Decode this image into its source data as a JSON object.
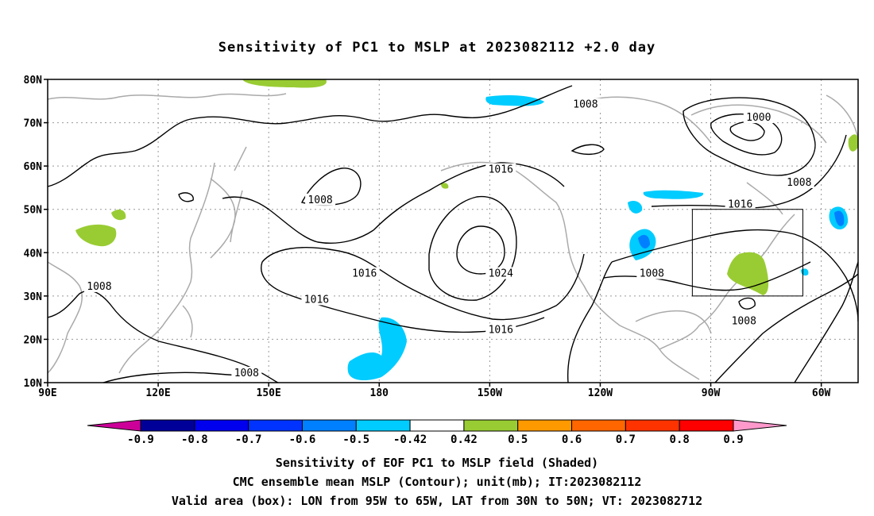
{
  "title": "Sensitivity of PC1 to MSLP at 2023082112 +2.0 day",
  "map": {
    "lat_labels": [
      "80N",
      "70N",
      "60N",
      "50N",
      "40N",
      "30N",
      "20N",
      "10N"
    ],
    "lon_labels": [
      "90E",
      "120E",
      "150E",
      "180",
      "150W",
      "120W",
      "90W",
      "60W"
    ],
    "lon_range": [
      90,
      310
    ],
    "lat_range": [
      10,
      80
    ],
    "contour_labels": [
      {
        "text": "1008",
        "lon": 236,
        "lat": 74
      },
      {
        "text": "1000",
        "lon": 283,
        "lat": 71
      },
      {
        "text": "1008",
        "lon": 294,
        "lat": 56
      },
      {
        "text": "1016",
        "lon": 213,
        "lat": 59
      },
      {
        "text": "1008",
        "lon": 164,
        "lat": 52
      },
      {
        "text": "1016",
        "lon": 278,
        "lat": 51
      },
      {
        "text": "1016",
        "lon": 176,
        "lat": 35
      },
      {
        "text": "1024",
        "lon": 213,
        "lat": 35
      },
      {
        "text": "1008",
        "lon": 254,
        "lat": 35
      },
      {
        "text": "1008",
        "lon": 104,
        "lat": 32
      },
      {
        "text": "1016",
        "lon": 163,
        "lat": 29
      },
      {
        "text": "1016",
        "lon": 213,
        "lat": 22
      },
      {
        "text": "1008",
        "lon": 279,
        "lat": 24
      },
      {
        "text": "1008",
        "lon": 144,
        "lat": 12
      }
    ],
    "valid_box": {
      "lon_min": 265,
      "lon_max": 295,
      "lat_min": 30,
      "lat_max": 50
    },
    "colors": {
      "land": "#aaaaaa",
      "contour": "#000000",
      "grid": "#999999",
      "pos_0_5": "#99cc33",
      "neg_0_5": "#00ccff",
      "neg_0_6": "#0080ff"
    }
  },
  "colorbar": {
    "labels": [
      "-0.9",
      "-0.8",
      "-0.7",
      "-0.6",
      "-0.5",
      "-0.42",
      "0.42",
      "0.5",
      "0.6",
      "0.7",
      "0.8",
      "0.9"
    ],
    "colors": [
      "#cc0099",
      "#000099",
      "#0000ee",
      "#0033ff",
      "#0080ff",
      "#00ccff",
      "#ffffff",
      "#99cc33",
      "#ff9900",
      "#ff6600",
      "#ff3300",
      "#ff0000",
      "#ff99cc"
    ]
  },
  "captions": [
    "Sensitivity of EOF PC1 to MSLP field (Shaded)",
    "CMC ensemble mean MSLP (Contour); unit(mb); IT:2023082112",
    "Valid area (box): LON from 95W to 65W, LAT from 30N to 50N; VT: 2023082712"
  ]
}
